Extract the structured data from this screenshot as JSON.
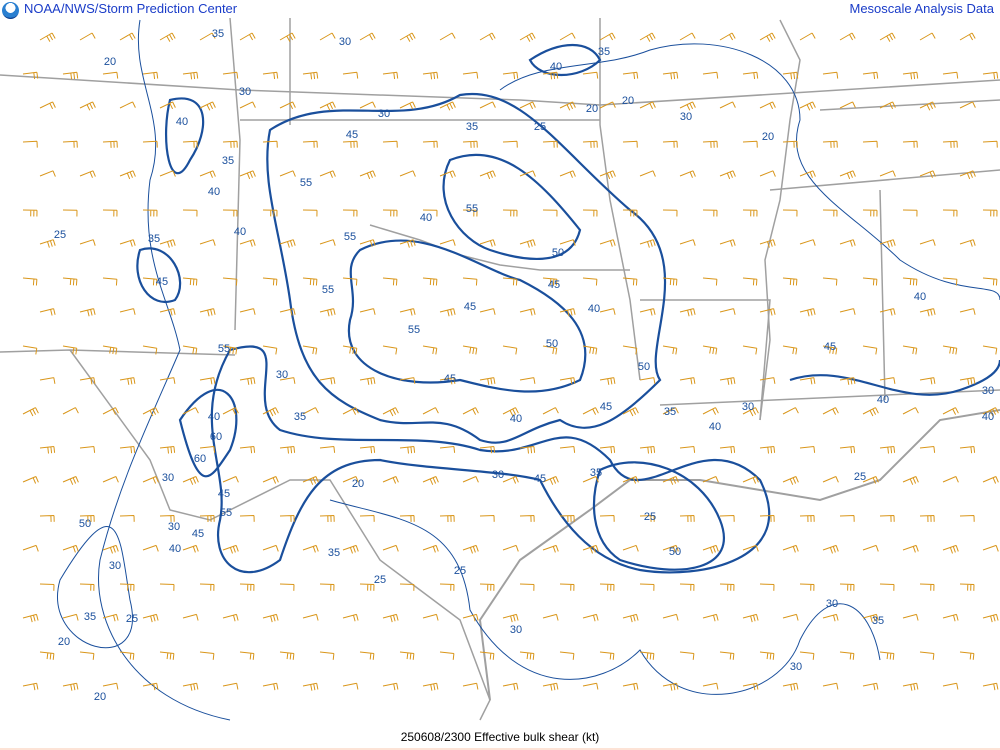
{
  "header": {
    "agency": "NOAA/NWS/Storm Prediction Center",
    "product_family": "Mesoscale Analysis Data"
  },
  "footer": {
    "caption": "250608/2300 Effective bulk shear (kt)"
  },
  "colors": {
    "contour": "#1a4f9c",
    "wind_barb": "#d9961a",
    "borders": "#a0a0a0",
    "title_text": "#1a3cc8"
  },
  "icons": {
    "logo": "noaa-logo-icon"
  },
  "contour_labels": [
    "35",
    "30",
    "20",
    "40",
    "30",
    "35",
    "20",
    "20",
    "30",
    "25",
    "40",
    "45",
    "35",
    "30",
    "40",
    "55",
    "35",
    "45",
    "40",
    "55",
    "25",
    "20",
    "35",
    "40",
    "55",
    "50",
    "55",
    "40",
    "45",
    "55",
    "45",
    "40",
    "60",
    "55",
    "30",
    "45",
    "50",
    "50",
    "45",
    "40",
    "45",
    "35",
    "30",
    "40",
    "40",
    "30",
    "40",
    "35",
    "60",
    "55",
    "45",
    "50",
    "45",
    "20",
    "30",
    "30",
    "35",
    "25",
    "35",
    "40",
    "50",
    "25",
    "30",
    "35",
    "25",
    "30",
    "20",
    "30",
    "30",
    "35",
    "25",
    "20",
    "30",
    "25",
    "45",
    "40"
  ]
}
